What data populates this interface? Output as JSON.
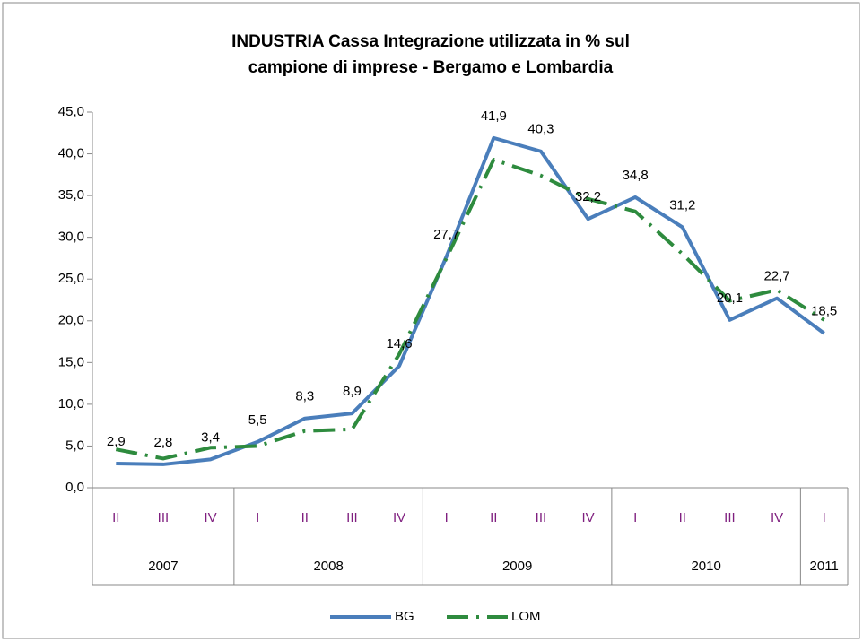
{
  "chart_data": {
    "type": "line",
    "title": [
      "INDUSTRIA  Cassa Integrazione utilizzata in % sul",
      "campione di imprese - Bergamo  e Lombardia"
    ],
    "categories": [
      "II",
      "III",
      "IV",
      "I",
      "II",
      "III",
      "IV",
      "I",
      "II",
      "III",
      "IV",
      "I",
      "II",
      "III",
      "IV",
      "I"
    ],
    "years": [
      "2007",
      null,
      null,
      "2008",
      null,
      null,
      null,
      "2009",
      null,
      null,
      null,
      "2010",
      null,
      null,
      null,
      "2011"
    ],
    "series": [
      {
        "name": "BG",
        "color": "#4a7ebb",
        "dash": false,
        "values": [
          2.9,
          2.8,
          3.4,
          5.5,
          8.3,
          8.9,
          14.6,
          27.7,
          41.9,
          40.3,
          32.2,
          34.8,
          31.2,
          20.1,
          22.7,
          18.5
        ],
        "value_labels": [
          "2,9",
          "2,8",
          "3,4",
          "5,5",
          "8,3",
          "8,9",
          "14,6",
          "27,7",
          "41,9",
          "40,3",
          "32,2",
          "34,8",
          "31,2",
          "20,1",
          "22,7",
          "18,5"
        ]
      },
      {
        "name": "LOM",
        "color": "#2e8b3e",
        "dash": true,
        "values": [
          4.6,
          3.5,
          4.8,
          5.0,
          6.8,
          7.0,
          16.0,
          27.5,
          39.3,
          37.4,
          34.6,
          33.1,
          28.0,
          22.4,
          23.7,
          20.1
        ]
      }
    ],
    "ylim": [
      0,
      45
    ],
    "yticks": [
      {
        "value": 0,
        "label": "0,0"
      },
      {
        "value": 5,
        "label": "5,0"
      },
      {
        "value": 10,
        "label": "10,0"
      },
      {
        "value": 15,
        "label": "15,0"
      },
      {
        "value": 20,
        "label": "20,0"
      },
      {
        "value": 25,
        "label": "25,0"
      },
      {
        "value": 30,
        "label": "30,0"
      },
      {
        "value": 35,
        "label": "35,0"
      },
      {
        "value": 40,
        "label": "40,0"
      },
      {
        "value": 45,
        "label": "45,0"
      }
    ],
    "grid": false,
    "legend": "bottom"
  }
}
